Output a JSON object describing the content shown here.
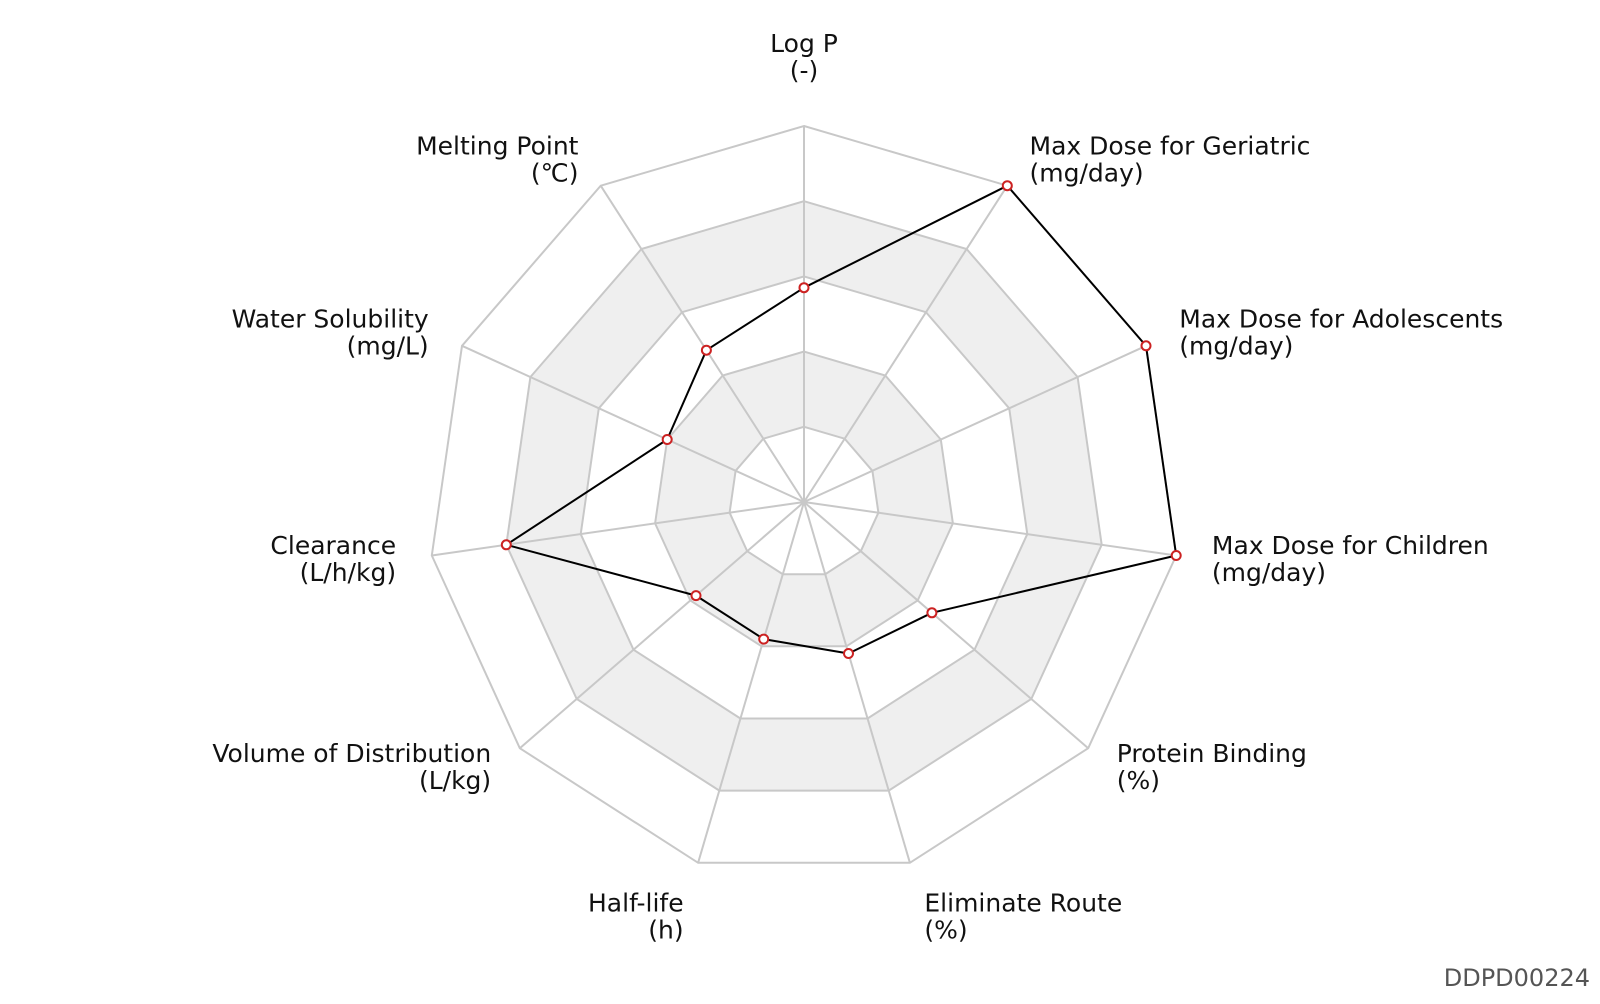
{
  "chart_data": {
    "type": "radar",
    "axes": [
      {
        "name": "Log P",
        "unit": "(-)"
      },
      {
        "name": "Max Dose for Geriatric",
        "unit": "(mg/day)"
      },
      {
        "name": "Max Dose for Adolescents",
        "unit": "(mg/day)"
      },
      {
        "name": "Max Dose for Children",
        "unit": "(mg/day)"
      },
      {
        "name": "Protein Binding",
        "unit": "(%)"
      },
      {
        "name": "Eliminate Route",
        "unit": "(%)"
      },
      {
        "name": "Half-life",
        "unit": "(h)"
      },
      {
        "name": "Volume of Distribution",
        "unit": "(L/kg)"
      },
      {
        "name": "Clearance",
        "unit": "(L/h/kg)"
      },
      {
        "name": "Water Solubility",
        "unit": "(mg/L)"
      },
      {
        "name": "Melting Point",
        "unit": "(℃)"
      }
    ],
    "series": [
      {
        "values": [
          0.57,
          1.0,
          1.0,
          1.0,
          0.45,
          0.42,
          0.38,
          0.38,
          0.8,
          0.4,
          0.48
        ]
      }
    ],
    "rings": 5,
    "range": [
      0,
      1
    ],
    "colors": {
      "line": "#000000",
      "marker": "#cc2222",
      "grid": "#c8c8c8",
      "band": "#efefef"
    }
  },
  "footer": {
    "id": "DDPD00224"
  }
}
